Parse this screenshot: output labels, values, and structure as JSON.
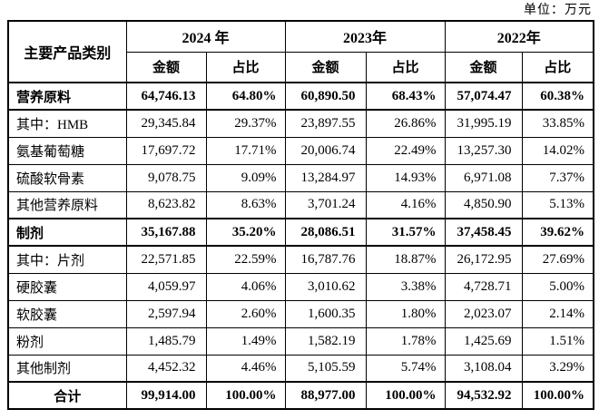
{
  "note": {
    "unit": "单位：万元"
  },
  "table": {
    "category_header": "主要产品类别",
    "year_headers": [
      "2024 年",
      "2023年",
      "2022年"
    ],
    "sub_headers": {
      "amount": "金额",
      "ratio": "占比"
    },
    "rows": [
      {
        "label": "营养原料",
        "bold": true,
        "total": false,
        "values": [
          "64,746.13",
          "64.80%",
          "60,890.50",
          "68.43%",
          "57,074.47",
          "60.38%"
        ]
      },
      {
        "label": "其中：HMB",
        "bold": false,
        "total": false,
        "values": [
          "29,345.84",
          "29.37%",
          "23,897.55",
          "26.86%",
          "31,995.19",
          "33.85%"
        ]
      },
      {
        "label": "氨基葡萄糖",
        "bold": false,
        "total": false,
        "values": [
          "17,697.72",
          "17.71%",
          "20,006.74",
          "22.49%",
          "13,257.30",
          "14.02%"
        ]
      },
      {
        "label": "硫酸软骨素",
        "bold": false,
        "total": false,
        "values": [
          "9,078.75",
          "9.09%",
          "13,284.97",
          "14.93%",
          "6,971.08",
          "7.37%"
        ]
      },
      {
        "label": "其他营养原料",
        "bold": false,
        "total": false,
        "values": [
          "8,623.82",
          "8.63%",
          "3,701.24",
          "4.16%",
          "4,850.90",
          "5.13%"
        ]
      },
      {
        "label": "制剂",
        "bold": true,
        "total": false,
        "values": [
          "35,167.88",
          "35.20%",
          "28,086.51",
          "31.57%",
          "37,458.45",
          "39.62%"
        ]
      },
      {
        "label": "其中：片剂",
        "bold": false,
        "total": false,
        "values": [
          "22,571.85",
          "22.59%",
          "16,787.76",
          "18.87%",
          "26,172.95",
          "27.69%"
        ]
      },
      {
        "label": "硬胶囊",
        "bold": false,
        "total": false,
        "values": [
          "4,059.97",
          "4.06%",
          "3,010.62",
          "3.38%",
          "4,728.71",
          "5.00%"
        ]
      },
      {
        "label": "软胶囊",
        "bold": false,
        "total": false,
        "values": [
          "2,597.94",
          "2.60%",
          "1,600.35",
          "1.80%",
          "2,023.07",
          "2.14%"
        ]
      },
      {
        "label": "粉剂",
        "bold": false,
        "total": false,
        "values": [
          "1,485.79",
          "1.49%",
          "1,582.19",
          "1.78%",
          "1,425.69",
          "1.51%"
        ]
      },
      {
        "label": "其他制剂",
        "bold": false,
        "total": false,
        "values": [
          "4,452.32",
          "4.46%",
          "5,105.59",
          "5.74%",
          "3,108.04",
          "3.29%"
        ]
      },
      {
        "label": "合计",
        "bold": true,
        "total": true,
        "values": [
          "99,914.00",
          "100.00%",
          "88,977.00",
          "100.00%",
          "94,532.92",
          "100.00%"
        ]
      }
    ]
  }
}
